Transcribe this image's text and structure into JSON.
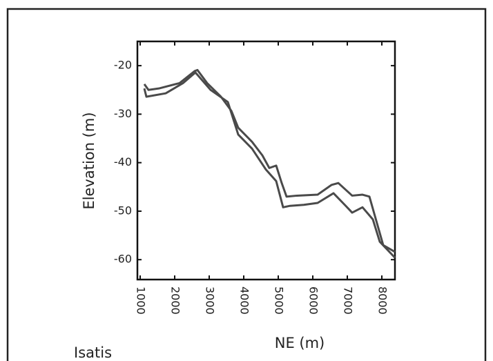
{
  "chart_data": {
    "type": "line",
    "xlabel": "NE (m)",
    "ylabel": "Elevation (m)",
    "annotation": "Isatis",
    "xlim": [
      920,
      8380
    ],
    "ylim": [
      -64.1,
      -15
    ],
    "xticks": [
      1000,
      2000,
      3000,
      4000,
      5000,
      6000,
      7000,
      8000
    ],
    "yticks": [
      -20,
      -30,
      -40,
      -50,
      -60
    ],
    "series": [
      {
        "color": "#4a4a4a",
        "x": [
          1120,
          1240,
          1540,
          2140,
          2580,
          2660,
          2940,
          3340,
          3640,
          3840,
          4240,
          4540,
          4740,
          4940,
          5100,
          5240,
          5540,
          6140,
          6540,
          6740,
          7140,
          7440,
          7640,
          7840,
          8040,
          8380
        ],
        "values": [
          -23.8,
          -25,
          -24.7,
          -23.6,
          -21.1,
          -20.9,
          -23.6,
          -26.4,
          -29.3,
          -32.8,
          -35.7,
          -38.5,
          -41.1,
          -40.6,
          -44.2,
          -47,
          -46.8,
          -46.6,
          -44.6,
          -44.2,
          -46.8,
          -46.6,
          -47,
          -52,
          -57,
          -58.4
        ]
      },
      {
        "color": "#4a4a4a",
        "x": [
          1120,
          1180,
          1740,
          2240,
          2600,
          3040,
          3540,
          3840,
          4240,
          4640,
          4940,
          5140,
          5340,
          5740,
          6140,
          6600,
          6940,
          7140,
          7440,
          7740,
          7940,
          8380
        ],
        "values": [
          -24.7,
          -26.4,
          -25.7,
          -23.6,
          -21.4,
          -25,
          -27.5,
          -34.2,
          -37.1,
          -41.4,
          -43.8,
          -49.2,
          -48.9,
          -48.7,
          -48.3,
          -46.3,
          -48.8,
          -50.3,
          -49.2,
          -51.7,
          -56.3,
          -59.6
        ]
      }
    ]
  }
}
